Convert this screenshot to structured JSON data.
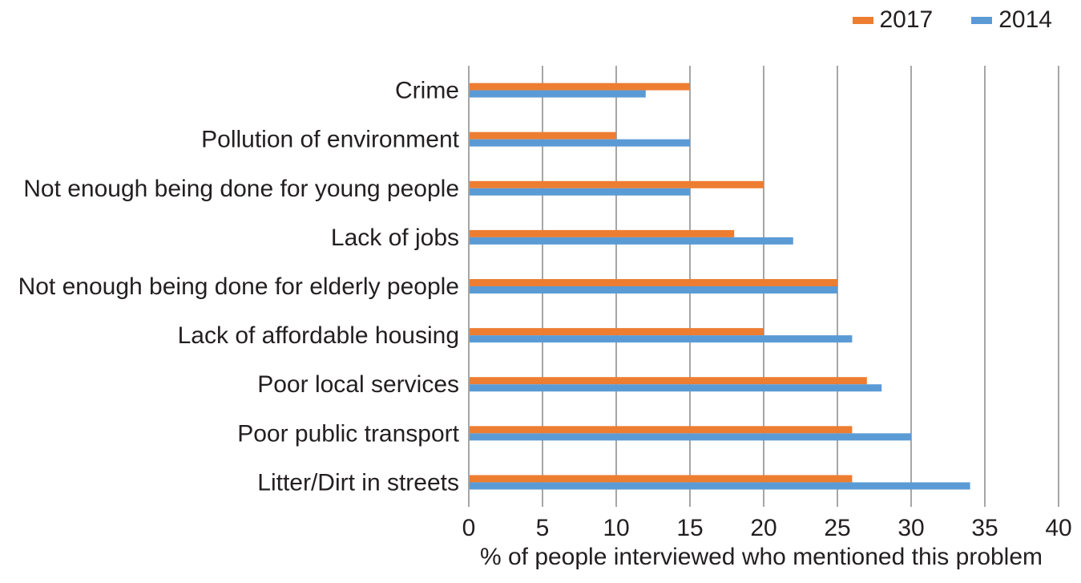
{
  "chart_data": {
    "type": "bar",
    "orientation": "horizontal",
    "categories": [
      "Crime",
      "Pollution of environment",
      "Not enough being done for young people",
      "Lack of jobs",
      "Not enough being done for elderly people",
      "Lack of affordable housing",
      "Poor local services",
      "Poor public transport",
      "Litter/Dirt in streets"
    ],
    "series": [
      {
        "name": "2017",
        "color": "#ed7d31",
        "values": [
          15,
          10,
          20,
          18,
          25,
          20,
          27,
          26,
          26
        ]
      },
      {
        "name": "2014",
        "color": "#5b9bd5",
        "values": [
          12,
          15,
          15,
          22,
          25,
          26,
          28,
          30,
          34
        ]
      }
    ],
    "xlabel": "% of people interviewed who mentioned this problem",
    "ylabel": "",
    "xlim": [
      0,
      40
    ],
    "xticks": [
      0,
      5,
      10,
      15,
      20,
      25,
      30,
      35,
      40
    ],
    "grid": true,
    "legend_position": "top-right"
  }
}
